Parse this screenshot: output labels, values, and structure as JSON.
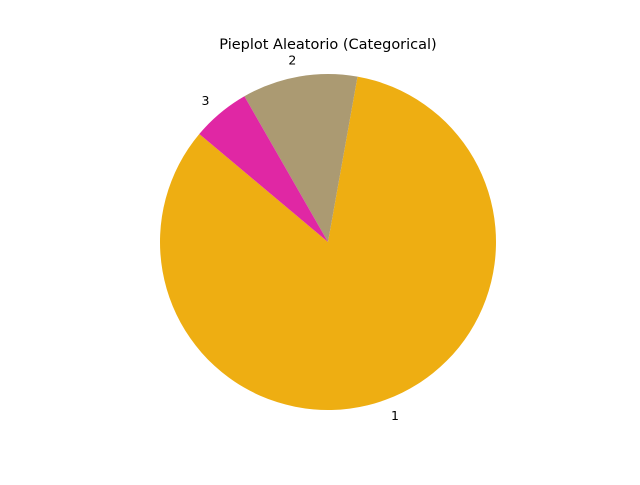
{
  "chart_data": {
    "type": "pie",
    "title": "Pieplot Aleatorio (Categorical)",
    "categories": [
      "1",
      "2",
      "3"
    ],
    "values": [
      83.3,
      11.1,
      5.6
    ],
    "colors": [
      "#eeae12",
      "#ab9a72",
      "#e027a4"
    ],
    "start_angle_deg": 140,
    "direction": "counterclockwise",
    "legend": "none"
  }
}
